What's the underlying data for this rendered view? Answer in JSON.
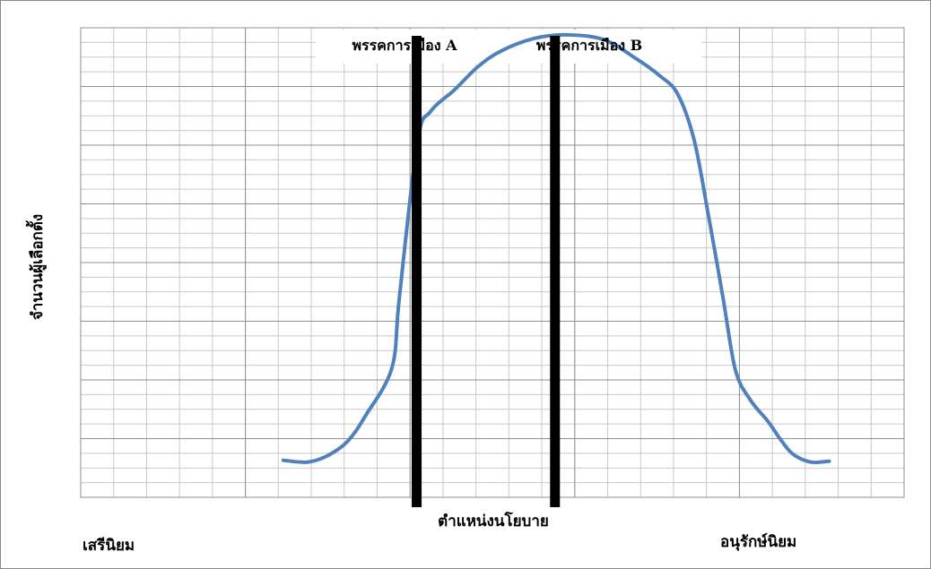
{
  "chart_data": {
    "type": "line",
    "title": "",
    "xlabel": "ตำแหน่งนโยบาย",
    "ylabel": "จำนวนผู้เลือกตั้ง",
    "x_end_labels": {
      "left": "เสรีนิยม",
      "right": "อนุรักษ์นิยม"
    },
    "grid": true,
    "xlim": [
      0,
      100
    ],
    "ylim": [
      0,
      100
    ],
    "series": [
      {
        "color": "#4f81bd",
        "points": [
          [
            24.6,
            7.9
          ],
          [
            27.5,
            7.5
          ],
          [
            29.9,
            8.8
          ],
          [
            32.4,
            11.9
          ],
          [
            34.6,
            17.4
          ],
          [
            37.8,
            27.6
          ],
          [
            38.7,
            42.6
          ],
          [
            40.9,
            75.8
          ],
          [
            42.5,
            82.2
          ],
          [
            45.4,
            86.8
          ],
          [
            48.3,
            91.8
          ],
          [
            51.0,
            95.0
          ],
          [
            55.0,
            97.7
          ],
          [
            59.0,
            98.5
          ],
          [
            63.5,
            97.5
          ],
          [
            67.4,
            93.5
          ],
          [
            70.3,
            89.8
          ],
          [
            72.5,
            85.9
          ],
          [
            74.5,
            76.1
          ],
          [
            76.2,
            60.4
          ],
          [
            78.0,
            42.6
          ],
          [
            79.5,
            27.2
          ],
          [
            81.3,
            20.8
          ],
          [
            83.5,
            16.1
          ],
          [
            85.0,
            12.3
          ],
          [
            86.5,
            9.2
          ],
          [
            88.7,
            7.5
          ],
          [
            90.9,
            7.7
          ]
        ]
      }
    ],
    "markers": [
      {
        "label": "พรรคการเมือง A",
        "x": 40.8
      },
      {
        "label": "พรรคการเมือง B",
        "x": 57.6
      }
    ]
  }
}
